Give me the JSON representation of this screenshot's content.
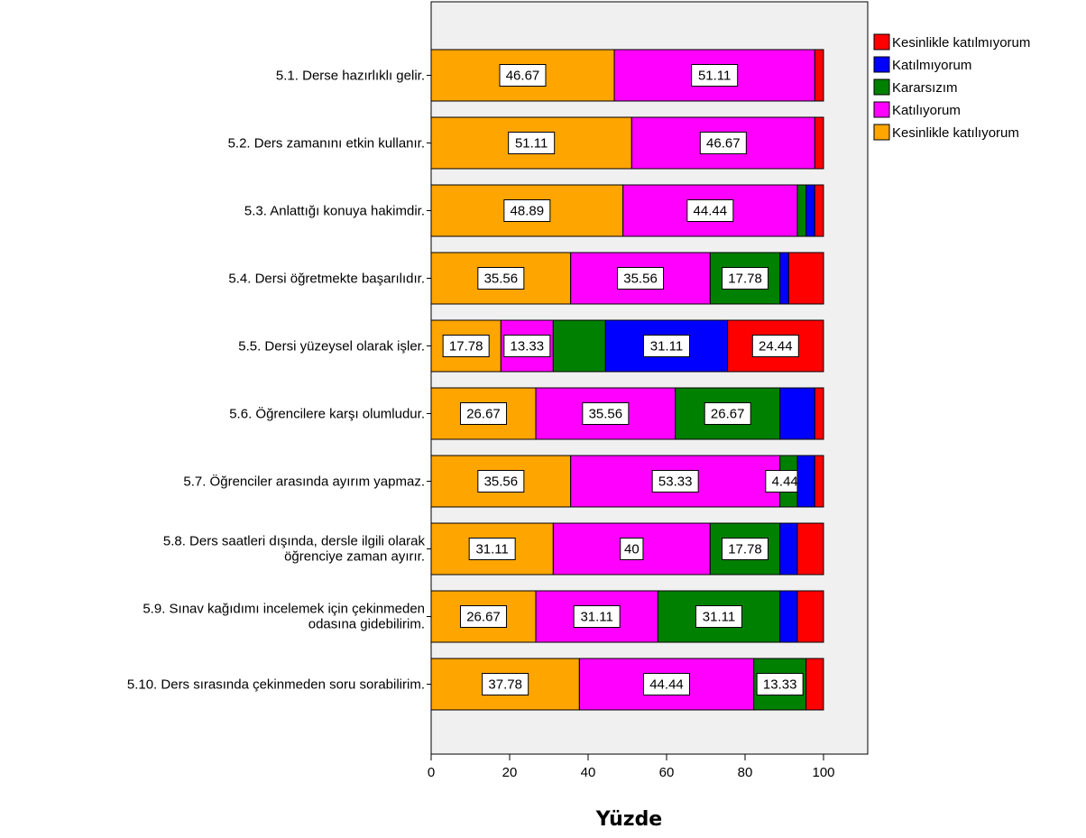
{
  "chart_data": {
    "type": "bar",
    "orientation": "horizontal",
    "stacked": true,
    "xlabel": "Yüzde",
    "xlim": [
      0,
      100
    ],
    "xticks": [
      "0",
      "20",
      "40",
      "60",
      "80",
      "100"
    ],
    "legend_position": "top-right",
    "categories": [
      [
        "5.1. Derse hazırlıklı gelir."
      ],
      [
        "5.2. Ders zamanını etkin kullanır."
      ],
      [
        "5.3. Anlattığı konuya hakimdir."
      ],
      [
        "5.4. Dersi öğretmekte başarılıdır."
      ],
      [
        "5.5. Dersi yüzeysel olarak işler."
      ],
      [
        "5.6. Öğrencilere karşı olumludur."
      ],
      [
        "5.7. Öğrenciler arasında ayırım yapmaz."
      ],
      [
        "5.8. Ders saatleri dışında, dersle ilgili olarak",
        "öğrenciye zaman ayırır."
      ],
      [
        "5.9. Sınav kağıdımı incelemek için çekinmeden",
        "odasına gidebilirim."
      ],
      [
        "5.10. Ders sırasında çekinmeden soru sorabilirim."
      ]
    ],
    "series": [
      {
        "name": "Kesinlikle katılıyorum",
        "color": "#ffa500",
        "values": [
          46.67,
          51.11,
          48.89,
          35.56,
          17.78,
          26.67,
          35.56,
          31.11,
          26.67,
          37.78
        ],
        "labels": [
          "46.67",
          "51.11",
          "48.89",
          "35.56",
          "17.78",
          "26.67",
          "35.56",
          "31.11",
          "26.67",
          "37.78"
        ]
      },
      {
        "name": "Katılıyorum",
        "color": "#ff00ff",
        "values": [
          51.11,
          46.67,
          44.44,
          35.56,
          13.33,
          35.56,
          53.33,
          40,
          31.11,
          44.44
        ],
        "labels": [
          "51.11",
          "46.67",
          "44.44",
          "35.56",
          "13.33",
          "35.56",
          "53.33",
          "40",
          "31.11",
          "44.44"
        ]
      },
      {
        "name": "Kararsızım",
        "color": "#008000",
        "values": [
          0,
          0,
          2.22,
          17.78,
          13.33,
          26.67,
          4.444,
          17.78,
          31.11,
          13.33
        ],
        "labels": [
          "",
          "",
          "",
          "17.78",
          "",
          "26.67",
          "4.444",
          "17.78",
          "31.11",
          "13.33"
        ]
      },
      {
        "name": "Katılmıyorum",
        "color": "#0000ff",
        "values": [
          0,
          0,
          2.22,
          2.22,
          31.11,
          8.89,
          4.444,
          4.44,
          4.44,
          0
        ],
        "labels": [
          "",
          "",
          "",
          "",
          "31.11",
          "",
          "",
          "",
          "",
          ""
        ]
      },
      {
        "name": "Kesinlikle katılmıyorum",
        "color": "#ff0000",
        "values": [
          2.22,
          2.22,
          2.22,
          8.89,
          24.44,
          2.22,
          2.22,
          6.67,
          6.67,
          4.44
        ],
        "labels": [
          "",
          "",
          "",
          "",
          "24.44",
          "",
          "",
          "",
          "",
          ""
        ]
      }
    ],
    "legend_order": [
      4,
      3,
      2,
      1,
      0
    ]
  },
  "colors": {
    "plot_background": "#f0f0f0",
    "page_background": "#ffffff"
  }
}
